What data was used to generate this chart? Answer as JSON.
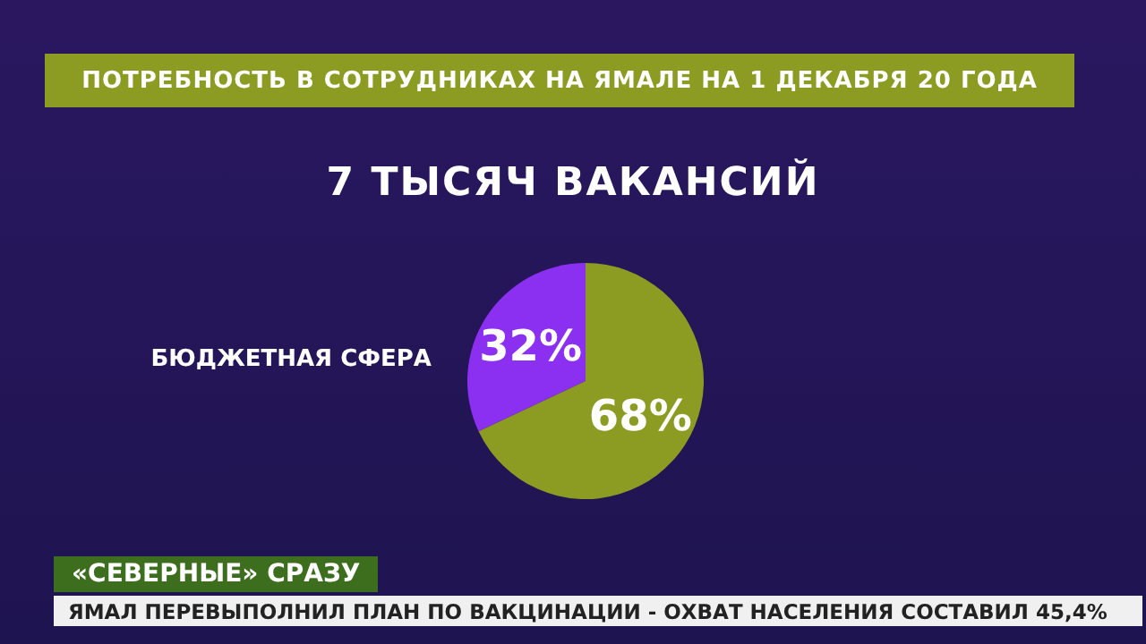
{
  "chart_data": {
    "type": "pie",
    "title": "ПОТРЕБНОСТЬ В СОТРУДНИКАХ НА ЯМАЛЕ НА 1 ДЕКАБРЯ 20 ГОДА",
    "subtitle": "7 ТЫСЯЧ ВАКАНСИЙ",
    "categories": [
      "БЮДЖЕТНАЯ СФЕРА",
      null
    ],
    "values": [
      32,
      68
    ],
    "colors": [
      "#8b2ff0",
      "#8c9c22"
    ],
    "value_labels": [
      "32%",
      "68%"
    ],
    "annotations": [
      "«СЕВЕРНЫЕ» СРАЗУ",
      "ЯМАЛ ПЕРЕВЫПОЛНИЛ ПЛАН ПО ВАКЦИНАЦИИ - ОХВАТ НАСЕЛЕНИЯ СОСТАВИЛ 45,4%"
    ]
  }
}
